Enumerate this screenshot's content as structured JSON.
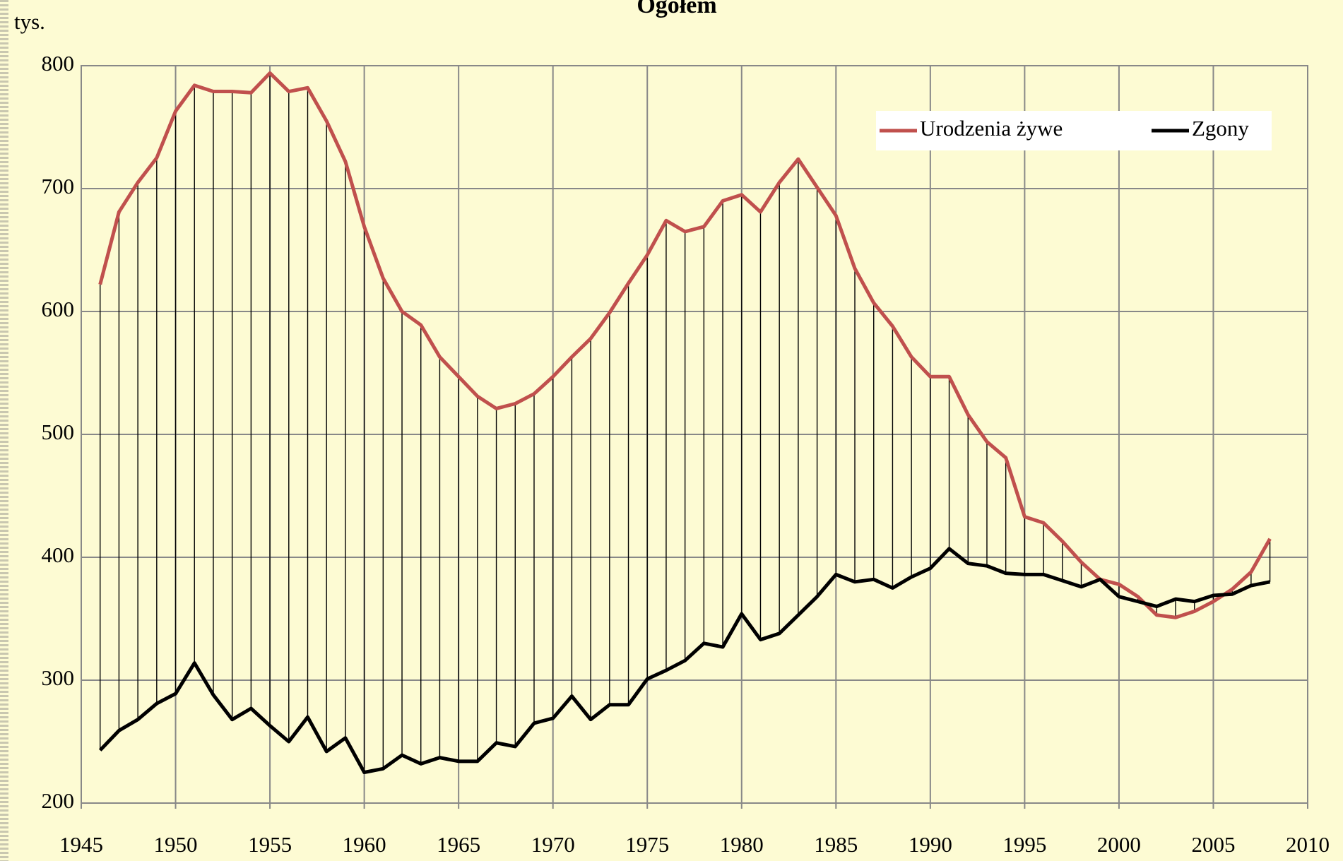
{
  "chart_data": {
    "type": "line",
    "title": "Ogółem",
    "y_label": "tys.",
    "x": [
      1946,
      1947,
      1948,
      1949,
      1950,
      1951,
      1952,
      1953,
      1954,
      1955,
      1956,
      1957,
      1958,
      1959,
      1960,
      1961,
      1962,
      1963,
      1964,
      1965,
      1966,
      1967,
      1968,
      1969,
      1970,
      1971,
      1972,
      1973,
      1974,
      1975,
      1976,
      1977,
      1978,
      1979,
      1980,
      1981,
      1982,
      1983,
      1984,
      1985,
      1986,
      1987,
      1988,
      1989,
      1990,
      1991,
      1992,
      1993,
      1994,
      1995,
      1996,
      1997,
      1998,
      1999,
      2000,
      2001,
      2002,
      2003,
      2004,
      2005,
      2006,
      2007,
      2008
    ],
    "series": [
      {
        "name": "Urodzenia żywe",
        "color": "#c0504d",
        "values": [
          622,
          681,
          705,
          725,
          763,
          784,
          779,
          779,
          778,
          794,
          779,
          782,
          755,
          722,
          669,
          627,
          600,
          589,
          563,
          547,
          531,
          521,
          525,
          533,
          547,
          563,
          578,
          599,
          623,
          646,
          674,
          665,
          669,
          690,
          695,
          681,
          705,
          724,
          701,
          678,
          635,
          607,
          588,
          563,
          547,
          547,
          516,
          494,
          481,
          433,
          428,
          413,
          396,
          382,
          378,
          368,
          353,
          351,
          356,
          364,
          374,
          388,
          415
        ]
      },
      {
        "name": "Zgony",
        "color": "#000000",
        "values": [
          243,
          259,
          268,
          281,
          289,
          314,
          288,
          268,
          277,
          263,
          250,
          270,
          242,
          253,
          225,
          228,
          239,
          232,
          237,
          234,
          234,
          249,
          246,
          265,
          269,
          287,
          268,
          280,
          280,
          301,
          308,
          316,
          330,
          327,
          354,
          333,
          338,
          353,
          368,
          386,
          380,
          382,
          375,
          384,
          391,
          407,
          395,
          393,
          387,
          386,
          386,
          381,
          376,
          382,
          368,
          364,
          360,
          366,
          364,
          369,
          370,
          377,
          380
        ]
      }
    ],
    "xlim": [
      1945,
      2010
    ],
    "xticks": [
      1945,
      1950,
      1955,
      1960,
      1965,
      1970,
      1975,
      1980,
      1985,
      1990,
      1995,
      2000,
      2005,
      2010
    ],
    "ylim": [
      200,
      800
    ],
    "yticks": [
      200,
      300,
      400,
      500,
      600,
      700,
      800
    ],
    "grid": true,
    "drop_lines": true,
    "legend": "top-right"
  }
}
